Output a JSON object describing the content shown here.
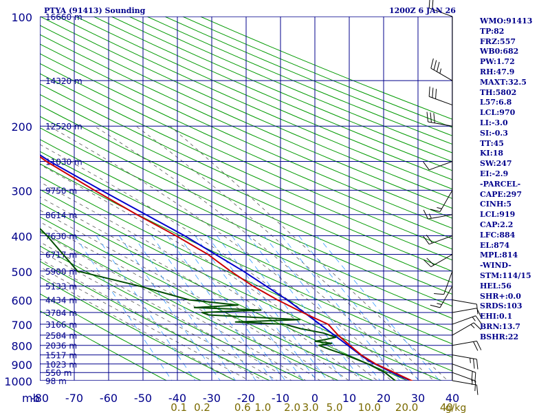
{
  "header": {
    "station": "PTYA (91413) Sounding",
    "time": "1200Z  6 JAN 26"
  },
  "indices": [
    "WMO:91413",
    "TP:82",
    "FRZ:557",
    "WB0:682",
    "PW:1.72",
    "RH:47.9",
    "MAXT:32.5",
    "TH:5802",
    "L57:6.8",
    "LCL:970",
    "LI:-3.0",
    "SI:-0.3",
    "TT:45",
    "KI:18",
    "SW:247",
    "EI:-2.9",
    "-PARCEL-",
    "CAPE:297",
    "CINH:5",
    "LCL:919",
    "CAP:2.2",
    "LFC:884",
    "EL:874",
    "MPL:814",
    "-WIND-",
    "STM:114/15",
    "HEL:56",
    "SHR+:0.0",
    "SRDS:103",
    "EHI:0.1",
    "BRN:13.7",
    "BSHR:22"
  ],
  "colors": {
    "grid": "#00008b",
    "dry_adiabat": "#009900",
    "moist_adiabat": "#555555",
    "mixing_ratio": "#3399ff",
    "temperature": "#cc0000",
    "dewpoint": "#004d00",
    "parcel": "#0000cc",
    "axis_text": "#00008b",
    "mix_text": "#7a6a00",
    "wind": "#000000"
  },
  "chart_data": {
    "type": "skew-t",
    "pressure_ticks": [
      "100",
      "200",
      "300",
      "400",
      "500",
      "600",
      "700",
      "800",
      "900",
      "1000"
    ],
    "pressure_levels": [
      100,
      200,
      300,
      400,
      500,
      600,
      700,
      800,
      900,
      1000
    ],
    "height_labels": [
      {
        "p": 100,
        "label": "16660 m"
      },
      {
        "p": 150,
        "label": "14320 m"
      },
      {
        "p": 200,
        "label": "12520 m"
      },
      {
        "p": 250,
        "label": "11030 m"
      },
      {
        "p": 300,
        "label": "9750 m"
      },
      {
        "p": 350,
        "label": "8614 m"
      },
      {
        "p": 400,
        "label": "7630 m"
      },
      {
        "p": 450,
        "label": "6717 m"
      },
      {
        "p": 500,
        "label": "5900 m"
      },
      {
        "p": 550,
        "label": "5133 m"
      },
      {
        "p": 600,
        "label": "4434 m"
      },
      {
        "p": 650,
        "label": "3784 m"
      },
      {
        "p": 700,
        "label": "3166 m"
      },
      {
        "p": 750,
        "label": "2584 m"
      },
      {
        "p": 800,
        "label": "2036 m"
      },
      {
        "p": 850,
        "label": "1517 m"
      },
      {
        "p": 900,
        "label": "1023 m"
      },
      {
        "p": 950,
        "label": "550 m"
      },
      {
        "p": 1000,
        "label": "98 m"
      }
    ],
    "temp_axis_unit": "mb",
    "temp_ticks": [
      "-80",
      "-70",
      "-60",
      "-50",
      "-40",
      "-30",
      "-20",
      "-10",
      "0",
      "10",
      "20",
      "30",
      "40"
    ],
    "temp_values": [
      -80,
      -70,
      -60,
      -50,
      -40,
      -30,
      -20,
      -10,
      0,
      10,
      20,
      30,
      40
    ],
    "mixing_ratio_labels": [
      "0.1",
      "0.2",
      "0.6",
      "1.0",
      "2.0",
      "3.0",
      "5.0",
      "10.0",
      "20.0",
      "40"
    ],
    "mixing_ratio_values": [
      0.1,
      0.2,
      0.6,
      1.0,
      2.0,
      3.0,
      5.0,
      10.0,
      20.0,
      40
    ],
    "mixing_ratio_unit": "g/kg",
    "temperature_profile": [
      [
        1006,
        28.6
      ],
      [
        950,
        24.2
      ],
      [
        900,
        20.0
      ],
      [
        850,
        17.0
      ],
      [
        800,
        15.0
      ],
      [
        750,
        13.0
      ],
      [
        700,
        11.6
      ],
      [
        650,
        5.8
      ],
      [
        600,
        0.2
      ],
      [
        550,
        -5.0
      ],
      [
        500,
        -9.5
      ],
      [
        450,
        -13.8
      ],
      [
        400,
        -20.5
      ],
      [
        350,
        -29.0
      ],
      [
        300,
        -38.0
      ],
      [
        250,
        -48.0
      ],
      [
        200,
        -57.5
      ],
      [
        150,
        -70.0
      ],
      [
        100,
        -83.0
      ]
    ],
    "dewpoint_profile": [
      [
        1006,
        23.6
      ],
      [
        950,
        21.5
      ],
      [
        900,
        17.8
      ],
      [
        850,
        12.5
      ],
      [
        820,
        8.5
      ],
      [
        800,
        6.0
      ],
      [
        790,
        10.0
      ],
      [
        780,
        5.5
      ],
      [
        770,
        9.0
      ],
      [
        760,
        12.0
      ],
      [
        740,
        9.0
      ],
      [
        720,
        3.0
      ],
      [
        700,
        -1.0
      ],
      [
        690,
        -15.0
      ],
      [
        680,
        4.0
      ],
      [
        660,
        -22.0
      ],
      [
        650,
        -23.5
      ],
      [
        640,
        -6.0
      ],
      [
        630,
        -25.0
      ],
      [
        620,
        -12.0
      ],
      [
        600,
        -25.5
      ],
      [
        550,
        -38.0
      ],
      [
        500,
        -54.0
      ],
      [
        400,
        -58.0
      ],
      [
        300,
        -65.0
      ],
      [
        250,
        -83.0
      ],
      [
        200,
        -93.0
      ],
      [
        150,
        -106.0
      ]
    ],
    "parcel_profile": [
      [
        1006,
        28.6
      ],
      [
        970,
        25.0
      ],
      [
        919,
        21.3
      ],
      [
        884,
        18.5
      ],
      [
        850,
        16.8
      ],
      [
        800,
        14.4
      ],
      [
        700,
        9.2
      ],
      [
        600,
        3.0
      ],
      [
        500,
        -5.8
      ],
      [
        400,
        -18.0
      ],
      [
        300,
        -36.0
      ],
      [
        250,
        -47.0
      ],
      [
        200,
        -58.0
      ],
      [
        150,
        -73.0
      ],
      [
        100,
        -90.0
      ]
    ],
    "wind_barbs": [
      {
        "p": 100,
        "dir": 290,
        "spd": 20
      },
      {
        "p": 150,
        "dir": 300,
        "spd": 35
      },
      {
        "p": 175,
        "dir": 290,
        "spd": 30
      },
      {
        "p": 200,
        "dir": 280,
        "spd": 30
      },
      {
        "p": 250,
        "dir": 250,
        "spd": 10
      },
      {
        "p": 300,
        "dir": 210,
        "spd": 15
      },
      {
        "p": 350,
        "dir": 260,
        "spd": 15
      },
      {
        "p": 400,
        "dir": 250,
        "spd": 20
      },
      {
        "p": 450,
        "dir": 240,
        "spd": 20
      },
      {
        "p": 500,
        "dir": 200,
        "spd": 10
      },
      {
        "p": 550,
        "dir": 210,
        "spd": 15
      },
      {
        "p": 600,
        "dir": 100,
        "spd": 10
      },
      {
        "p": 650,
        "dir": 80,
        "spd": 10
      },
      {
        "p": 700,
        "dir": 70,
        "spd": 15
      },
      {
        "p": 750,
        "dir": 60,
        "spd": 15
      },
      {
        "p": 800,
        "dir": 80,
        "spd": 20
      },
      {
        "p": 850,
        "dir": 100,
        "spd": 25
      },
      {
        "p": 900,
        "dir": 110,
        "spd": 20
      },
      {
        "p": 950,
        "dir": 110,
        "spd": 15
      },
      {
        "p": 1000,
        "dir": 100,
        "spd": 10
      }
    ]
  }
}
